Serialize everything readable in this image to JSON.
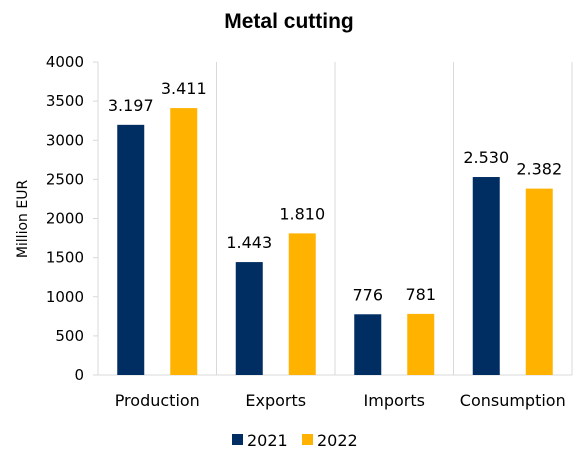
{
  "chart_data": {
    "type": "bar",
    "title": "Metal cutting",
    "xlabel": "",
    "ylabel": "Million EUR",
    "ylim": [
      0,
      4000
    ],
    "yticks": [
      "0",
      "500",
      "1000",
      "1500",
      "2000",
      "2500",
      "3000",
      "3500",
      "4000"
    ],
    "grid": "vertical separators between categories",
    "legend_position": "bottom",
    "categories": [
      "Production",
      "Exports",
      "Imports",
      "Consumption"
    ],
    "series": [
      {
        "name": "2021",
        "color": "#002d62",
        "values": [
          3197,
          1443,
          776,
          2530
        ],
        "labels": [
          "3.197",
          "1.443",
          "776",
          "2.530"
        ]
      },
      {
        "name": "2022",
        "color": "#ffb300",
        "values": [
          3411,
          1810,
          781,
          2382
        ],
        "labels": [
          "3.411",
          "1.810",
          "781",
          "2.382"
        ]
      }
    ]
  }
}
